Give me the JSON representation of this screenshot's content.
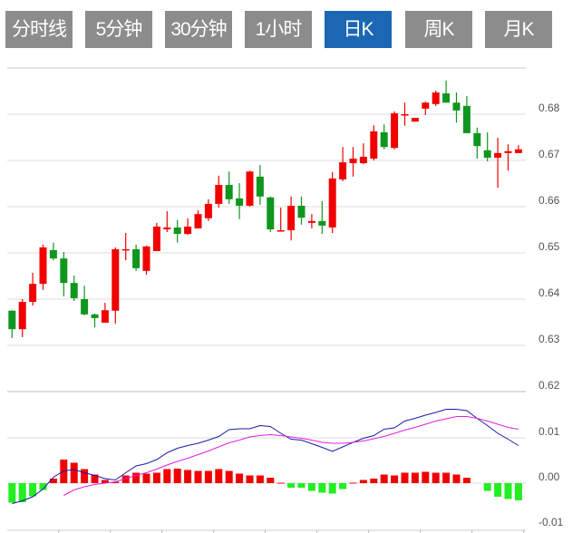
{
  "tabs": [
    {
      "label": "分时线",
      "active": false
    },
    {
      "label": "5分钟",
      "active": false
    },
    {
      "label": "30分钟",
      "active": false
    },
    {
      "label": "1小时",
      "active": false
    },
    {
      "label": "日K",
      "active": true
    },
    {
      "label": "周K",
      "active": false
    },
    {
      "label": "月K",
      "active": false
    }
  ],
  "colors": {
    "up": "#f20000",
    "down": "#0f961e",
    "hist_up": "#f20000",
    "hist_down": "#22ee22",
    "dif": "#1a1aa8",
    "dea": "#e020e0",
    "active_tab": "#1c67b4",
    "tab": "#8c8c8c",
    "grid": "#dddddd"
  },
  "chart_data": [
    {
      "type": "candlestick",
      "ylim": [
        0.62,
        0.689
      ],
      "yticks": [
        "0.68",
        "0.67",
        "0.66",
        "0.65",
        "0.64",
        "0.63",
        "0.62"
      ],
      "grid": true,
      "ohlc": [
        [
          0.6375,
          0.6335,
          0.6376,
          0.6316
        ],
        [
          0.6335,
          0.6394,
          0.64,
          0.6318
        ],
        [
          0.6394,
          0.6433,
          0.6457,
          0.6386
        ],
        [
          0.6433,
          0.6512,
          0.6518,
          0.642
        ],
        [
          0.6506,
          0.6488,
          0.6522,
          0.6484
        ],
        [
          0.6488,
          0.6435,
          0.6502,
          0.6406
        ],
        [
          0.6435,
          0.6402,
          0.6451,
          0.6396
        ],
        [
          0.64,
          0.6367,
          0.6429,
          0.6365
        ],
        [
          0.6367,
          0.6359,
          0.6369,
          0.6339
        ],
        [
          0.6349,
          0.6376,
          0.6392,
          0.6349
        ],
        [
          0.6375,
          0.6508,
          0.6512,
          0.6347
        ],
        [
          0.6508,
          0.6508,
          0.6543,
          0.6484
        ],
        [
          0.6508,
          0.6467,
          0.6518,
          0.6461
        ],
        [
          0.6461,
          0.6514,
          0.6516,
          0.6453
        ],
        [
          0.6504,
          0.6557,
          0.6565,
          0.6504
        ],
        [
          0.6551,
          0.6555,
          0.659,
          0.6545
        ],
        [
          0.6555,
          0.6541,
          0.6571,
          0.6522
        ],
        [
          0.6541,
          0.6557,
          0.6575,
          0.6539
        ],
        [
          0.6553,
          0.6584,
          0.6592,
          0.6553
        ],
        [
          0.6575,
          0.6606,
          0.6616,
          0.6569
        ],
        [
          0.6606,
          0.6647,
          0.6667,
          0.6598
        ],
        [
          0.6647,
          0.6616,
          0.6676,
          0.6606
        ],
        [
          0.6618,
          0.6602,
          0.6651,
          0.6573
        ],
        [
          0.6602,
          0.6676,
          0.6678,
          0.66
        ],
        [
          0.6665,
          0.6622,
          0.669,
          0.6604
        ],
        [
          0.662,
          0.6551,
          0.6622,
          0.6545
        ],
        [
          0.6549,
          0.6549,
          0.6598,
          0.6547
        ],
        [
          0.6549,
          0.6602,
          0.6622,
          0.6527
        ],
        [
          0.6602,
          0.6576,
          0.6622,
          0.6561
        ],
        [
          0.6565,
          0.6569,
          0.6584,
          0.6553
        ],
        [
          0.6569,
          0.6559,
          0.6612,
          0.6541
        ],
        [
          0.6555,
          0.6661,
          0.6675,
          0.6543
        ],
        [
          0.6659,
          0.6696,
          0.6729,
          0.6655
        ],
        [
          0.6694,
          0.6704,
          0.6729,
          0.6665
        ],
        [
          0.6694,
          0.6708,
          0.6737,
          0.6692
        ],
        [
          0.6704,
          0.6763,
          0.6776,
          0.67
        ],
        [
          0.6761,
          0.6729,
          0.6778,
          0.6724
        ],
        [
          0.6727,
          0.6802,
          0.6806,
          0.6724
        ],
        [
          0.68,
          0.68,
          0.6825,
          0.6775
        ],
        [
          0.6784,
          0.6792,
          0.6792,
          0.6784
        ],
        [
          0.6812,
          0.6825,
          0.6827,
          0.6798
        ],
        [
          0.6822,
          0.6847,
          0.6851,
          0.6818
        ],
        [
          0.6845,
          0.6825,
          0.6873,
          0.6825
        ],
        [
          0.6825,
          0.6808,
          0.6847,
          0.6782
        ],
        [
          0.6818,
          0.6759,
          0.6839,
          0.6759
        ],
        [
          0.6759,
          0.6731,
          0.6771,
          0.6704
        ],
        [
          0.6722,
          0.6706,
          0.6761,
          0.6698
        ],
        [
          0.6706,
          0.6716,
          0.6749,
          0.6641
        ],
        [
          0.6716,
          0.672,
          0.6735,
          0.6678
        ],
        [
          0.6716,
          0.6724,
          0.6733,
          0.6716
        ]
      ]
    },
    {
      "type": "macd",
      "ylim": [
        -0.0103,
        0.0199
      ],
      "yticks": [
        "0.01",
        "0.00",
        "-0.01"
      ],
      "grid": true,
      "histogram": [
        -0.0043,
        -0.0042,
        -0.0029,
        -0.0015,
        0.001,
        0.0052,
        0.0045,
        0.0031,
        0.0019,
        0.0007,
        0.0003,
        0.0017,
        0.0023,
        0.0021,
        0.0023,
        0.0031,
        0.0032,
        0.0029,
        0.0027,
        0.0027,
        0.0031,
        0.0027,
        0.0021,
        0.0017,
        0.0017,
        0.0012,
        0.0001,
        -0.001,
        -0.001,
        -0.0017,
        -0.0021,
        -0.0023,
        -0.0013,
        0.0001,
        0.0007,
        0.001,
        0.0019,
        0.0017,
        0.0023,
        0.0023,
        0.0025,
        0.0023,
        0.0023,
        0.0019,
        0.0012,
        0,
        -0.0017,
        -0.003,
        -0.0035,
        -0.0038
      ],
      "dif": [
        -0.0045,
        -0.0039,
        -0.003,
        -0.0013,
        0.0013,
        0.0027,
        0.003,
        0.0023,
        0.0017,
        0.001,
        0.0007,
        0.0023,
        0.0038,
        0.0043,
        0.0052,
        0.0067,
        0.0077,
        0.0083,
        0.0088,
        0.0095,
        0.0103,
        0.0118,
        0.012,
        0.012,
        0.0127,
        0.0125,
        0.011,
        0.0097,
        0.0095,
        0.0087,
        0.0079,
        0.007,
        0.008,
        0.009,
        0.0099,
        0.0105,
        0.0119,
        0.0122,
        0.0137,
        0.0143,
        0.015,
        0.0156,
        0.0163,
        0.0163,
        0.016,
        0.0143,
        0.0127,
        0.011,
        0.0097,
        0.0083
      ],
      "dea": [
        null,
        null,
        null,
        null,
        null,
        -0.0027,
        -0.0015,
        -0.0008,
        -0.0003,
        0.0,
        0.0003,
        0.001,
        0.0017,
        0.0023,
        0.0031,
        0.004,
        0.0048,
        0.0055,
        0.0063,
        0.0071,
        0.008,
        0.0089,
        0.0095,
        0.0102,
        0.0105,
        0.0107,
        0.0105,
        0.0102,
        0.0099,
        0.0095,
        0.009,
        0.0088,
        0.0088,
        0.009,
        0.0093,
        0.0098,
        0.0103,
        0.011,
        0.0117,
        0.0123,
        0.013,
        0.0137,
        0.0142,
        0.0147,
        0.0147,
        0.0143,
        0.0137,
        0.013,
        0.0123,
        0.0119
      ]
    }
  ]
}
